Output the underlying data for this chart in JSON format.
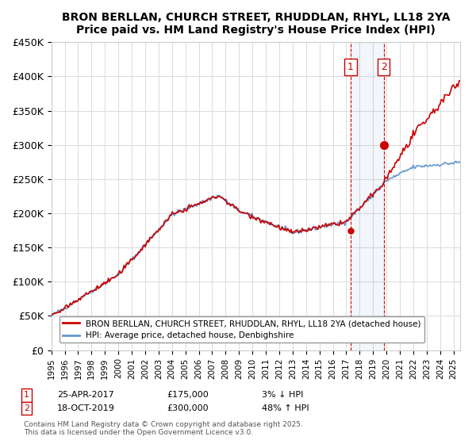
{
  "title": "BRON BERLLAN, CHURCH STREET, RHUDDLAN, RHYL, LL18 2YA",
  "subtitle": "Price paid vs. HM Land Registry's House Price Index (HPI)",
  "xlabel": "",
  "ylabel": "",
  "ylim": [
    0,
    450000
  ],
  "yticks": [
    0,
    50000,
    100000,
    150000,
    200000,
    250000,
    300000,
    350000,
    400000,
    450000
  ],
  "ytick_labels": [
    "£0",
    "£50K",
    "£100K",
    "£150K",
    "£200K",
    "£250K",
    "£300K",
    "£350K",
    "£400K",
    "£450K"
  ],
  "xlim_start": 1995.0,
  "xlim_end": 2025.5,
  "transaction1_x": 2017.32,
  "transaction1_y": 175000,
  "transaction1_label": "25-APR-2017",
  "transaction1_price": "£175,000",
  "transaction1_hpi": "3% ↓ HPI",
  "transaction2_x": 2019.8,
  "transaction2_y": 300000,
  "transaction2_label": "18-OCT-2019",
  "transaction2_price": "£300,000",
  "transaction2_hpi": "48% ↑ HPI",
  "line_color_property": "#cc0000",
  "line_color_hpi": "#6699cc",
  "background_color": "#ffffff",
  "grid_color": "#dddddd",
  "legend_label_property": "BRON BERLLAN, CHURCH STREET, RHUDDLAN, RHYL, LL18 2YA (detached house)",
  "legend_label_hpi": "HPI: Average price, detached house, Denbighshire",
  "footer": "Contains HM Land Registry data © Crown copyright and database right 2025.\nThis data is licensed under the Open Government Licence v3.0.",
  "marker1_num": "1",
  "marker2_num": "2"
}
